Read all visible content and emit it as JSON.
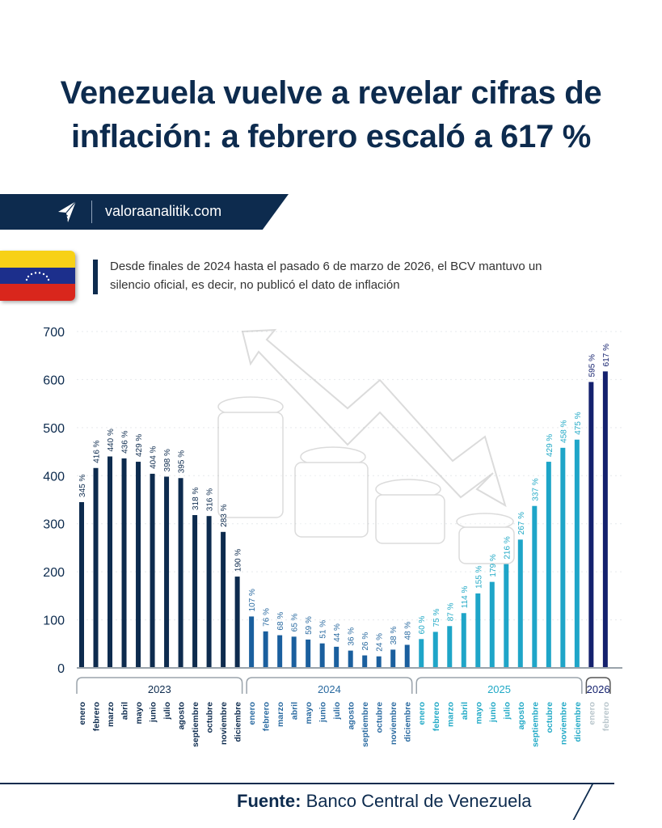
{
  "title": "Venezuela vuelve a revelar cifras de inflación: a febrero escaló a 617 %",
  "banner": {
    "site": "valoraanalitik.com",
    "logo_icon": "paper-plane-logo"
  },
  "note": "Desde finales de 2024 hasta el pasado 6 de marzo de 2026, el BCV mantuvo un silencio oficial, es decir, no publicó el dato de inflación",
  "flag_colors": [
    "#f7d117",
    "#1c2f8c",
    "#d9261c"
  ],
  "footer": {
    "label": "Fuente:",
    "source": "Banco Central de Venezuela"
  },
  "chart_data": {
    "type": "bar",
    "title": "",
    "xlabel": "",
    "ylabel": "",
    "ylim": [
      0,
      700
    ],
    "yticks": [
      0,
      100,
      200,
      300,
      400,
      500,
      600,
      700
    ],
    "grid": true,
    "value_suffix": " %",
    "groups": [
      {
        "year": "2023",
        "color": "#0d2b4e",
        "label_color": "#0d2b4e",
        "months": [
          "enero",
          "febrero",
          "marzo",
          "abril",
          "mayo",
          "junio",
          "julio",
          "agosto",
          "septiembre",
          "octubre",
          "noviembre",
          "diciembre"
        ],
        "values": [
          345,
          416,
          440,
          436,
          429,
          404,
          398,
          395,
          318,
          316,
          283,
          190
        ]
      },
      {
        "year": "2024",
        "color": "#1a5f9e",
        "label_color": "#2a6aa0",
        "months": [
          "enero",
          "febrero",
          "marzo",
          "abril",
          "mayo",
          "junio",
          "julio",
          "agosto",
          "septiembre",
          "octubre",
          "noviembre",
          "diciembre"
        ],
        "values": [
          107,
          76,
          68,
          65,
          59,
          51,
          44,
          36,
          26,
          24,
          38,
          48
        ]
      },
      {
        "year": "2025",
        "color": "#1ea5c8",
        "label_color": "#21a9c6",
        "months": [
          "enero",
          "febrero",
          "marzo",
          "abril",
          "mayo",
          "junio",
          "julio",
          "agosto",
          "septiembre",
          "octubre",
          "noviembre",
          "diciembre"
        ],
        "values": [
          60,
          75,
          87,
          114,
          155,
          179,
          216,
          267,
          337,
          429,
          458,
          475
        ]
      },
      {
        "year": "2026",
        "color": "#14216e",
        "label_color": "#14216e",
        "month_color": "#b9c6cc",
        "months": [
          "enero",
          "febrero"
        ],
        "values": [
          595,
          617
        ]
      }
    ]
  }
}
